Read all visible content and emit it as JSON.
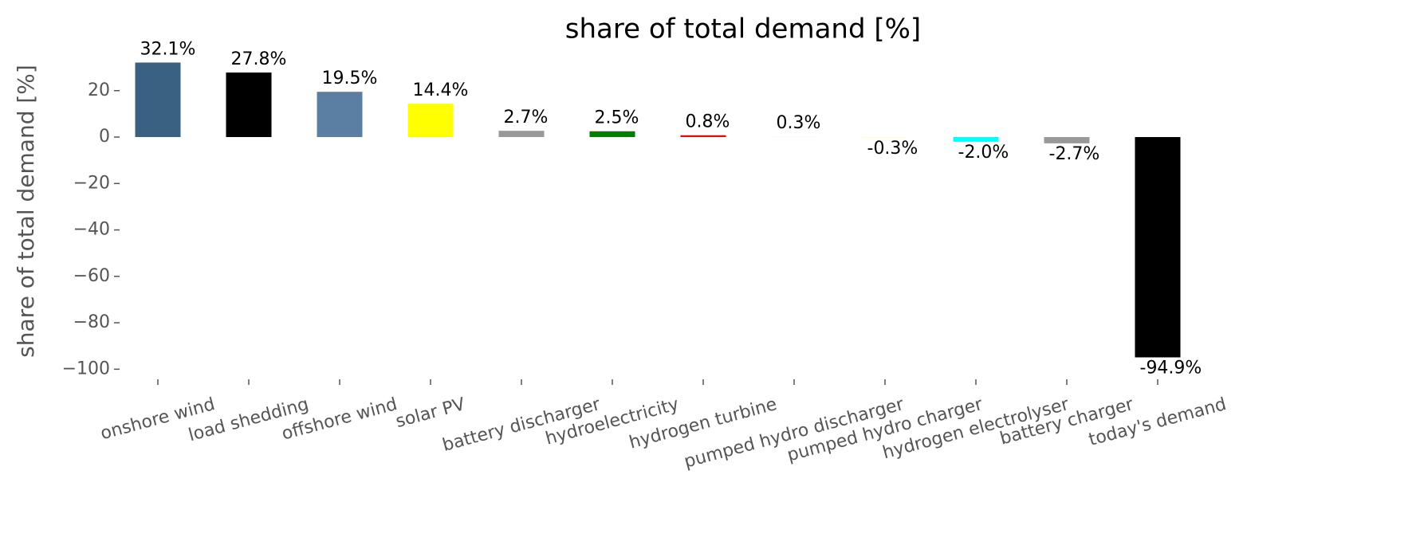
{
  "chart_data": {
    "type": "bar",
    "title": "share of total demand [%]",
    "y_label": "share of total demand [%]",
    "categories": [
      "onshore wind",
      "load shedding",
      "offshore wind",
      "solar PV",
      "battery discharger",
      "hydroelectricity",
      "hydrogen turbine",
      "pumped hydro discharger",
      "pumped hydro charger",
      "hydrogen electrolyser",
      "battery charger",
      "today's demand"
    ],
    "values": [
      32.1,
      27.8,
      19.5,
      14.4,
      2.7,
      2.5,
      0.8,
      0.3,
      -0.3,
      -2.0,
      -2.7,
      -94.9
    ],
    "value_labels": [
      "32.1%",
      "27.8%",
      "19.5%",
      "14.4%",
      "2.7%",
      "2.5%",
      "0.8%",
      "0.3%",
      "-0.3%",
      "-2.0%",
      "-2.7%",
      "-94.9%"
    ],
    "colors": [
      "#3b6182",
      "#000000",
      "#5b7fa3",
      "#ffff00",
      "#999999",
      "#008000",
      "#ff0000",
      "#ffffd0",
      "#fffae0",
      "#00ffff",
      "#999999",
      "#000000"
    ],
    "ylim": [
      -101.25,
      38.45
    ],
    "yticks": [
      {
        "value": -100,
        "label": "−100"
      },
      {
        "value": -80,
        "label": "−80"
      },
      {
        "value": -60,
        "label": "−60"
      },
      {
        "value": -40,
        "label": "−40"
      },
      {
        "value": -20,
        "label": "−20"
      },
      0,
      20
    ],
    "grid": false
  }
}
